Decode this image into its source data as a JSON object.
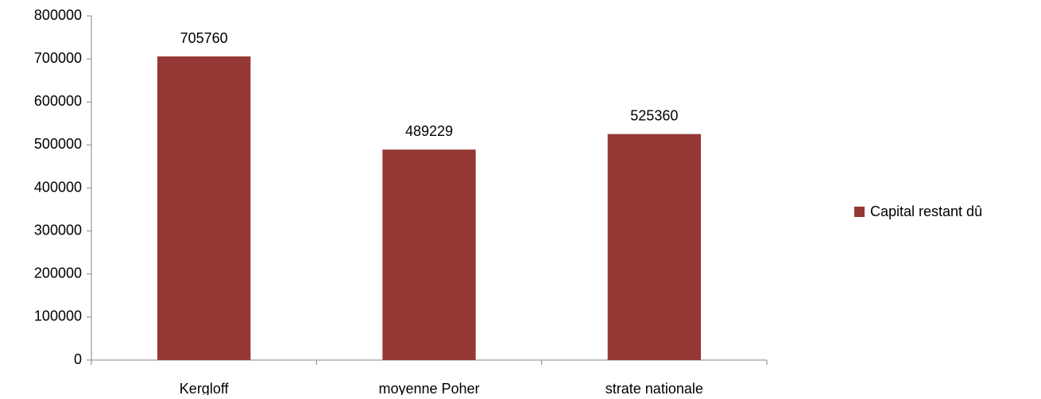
{
  "chart_data": {
    "type": "bar",
    "categories": [
      "Kergloff",
      "moyenne Poher",
      "strate nationale"
    ],
    "series": [
      {
        "name": "Capital restant dû",
        "color": "#953735",
        "values": [
          705760,
          489229,
          525360
        ]
      }
    ],
    "ylim": [
      0,
      800000
    ],
    "yticks": [
      0,
      100000,
      200000,
      300000,
      400000,
      500000,
      600000,
      700000,
      800000
    ],
    "grid": false,
    "legend": "right",
    "data_labels": true
  }
}
